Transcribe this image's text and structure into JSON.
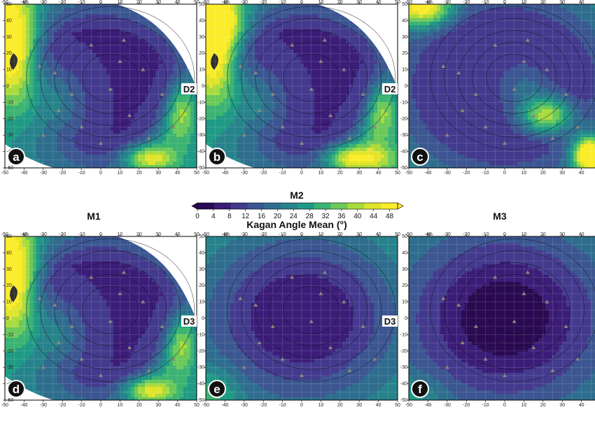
{
  "chart_data": {
    "type": "heatmap",
    "colorbar": {
      "title": "Kagan Angle Mean (°)",
      "ticks": [
        0,
        4,
        8,
        12,
        16,
        20,
        24,
        28,
        32,
        36,
        40,
        44,
        48
      ],
      "range": [
        0,
        50
      ],
      "colors": [
        "#2a0a52",
        "#3b1d78",
        "#433a8d",
        "#3b5691",
        "#2f6d8e",
        "#27838b",
        "#1f9a84",
        "#3cb372",
        "#6cc95a",
        "#a8db3e",
        "#e1e42a",
        "#fbec2a"
      ]
    },
    "row_labels": {
      "top_center": "M2",
      "left": "M1",
      "right": "M3"
    },
    "axis": {
      "unit": "km",
      "x_ticks": [
        -50,
        -40,
        -30,
        -20,
        -10,
        0,
        10,
        20,
        30,
        40,
        50
      ],
      "y_ticks": [
        50,
        40,
        30,
        20,
        10,
        0,
        -10,
        -20,
        -30,
        -40,
        -50
      ]
    },
    "panels": [
      {
        "label": "a",
        "side_label": "D2",
        "pattern": "west_east_high"
      },
      {
        "label": "b",
        "side_label": "D2",
        "pattern": "west_east_high_b"
      },
      {
        "label": "c",
        "side_label": "",
        "pattern": "southeast_high"
      },
      {
        "label": "d",
        "side_label": "D3",
        "pattern": "west_east_high"
      },
      {
        "label": "e",
        "side_label": "D3",
        "pattern": "low_center"
      },
      {
        "label": "f",
        "side_label": "",
        "pattern": "low_center_f"
      }
    ]
  }
}
